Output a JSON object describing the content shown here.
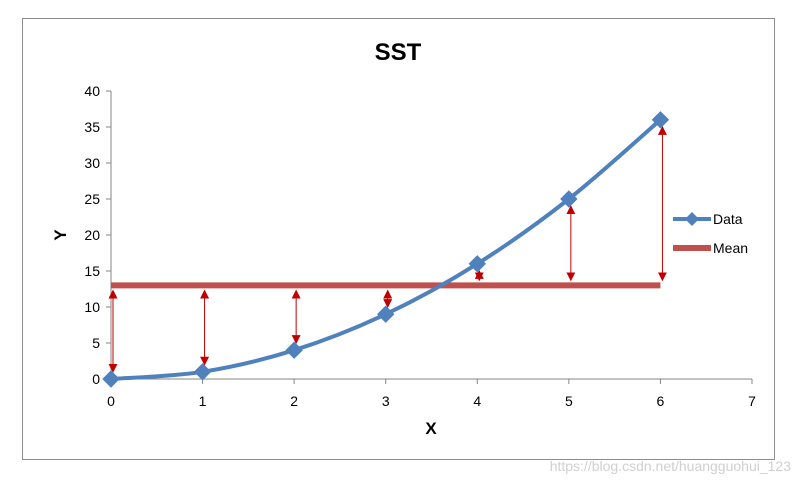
{
  "chart_data": {
    "type": "line",
    "title": "SST",
    "xlabel": "X",
    "ylabel": "Y",
    "xlim": [
      0,
      7
    ],
    "ylim": [
      0,
      40
    ],
    "xticks": [
      0,
      1,
      2,
      3,
      4,
      5,
      6,
      7
    ],
    "yticks": [
      0,
      5,
      10,
      15,
      20,
      25,
      30,
      35,
      40
    ],
    "grid": false,
    "legend_position": "right",
    "series": [
      {
        "name": "Data",
        "style": "smooth-line-diamond-markers",
        "color": "#4f81bd",
        "x": [
          0,
          1,
          2,
          3,
          4,
          5,
          6
        ],
        "y": [
          0,
          1,
          4,
          9,
          16,
          25,
          36
        ]
      },
      {
        "name": "Mean",
        "style": "thick-line",
        "color": "#c0504d",
        "x": [
          0,
          6
        ],
        "y": [
          13,
          13
        ]
      }
    ],
    "deviation_arrows": {
      "color": "#c00000",
      "from_y": 13,
      "x": [
        0,
        1,
        2,
        3,
        4,
        5,
        6
      ],
      "to_y": [
        0,
        1,
        4,
        9,
        16,
        25,
        36
      ]
    }
  },
  "watermark": "https://blog.csdn.net/huangguohui_123"
}
